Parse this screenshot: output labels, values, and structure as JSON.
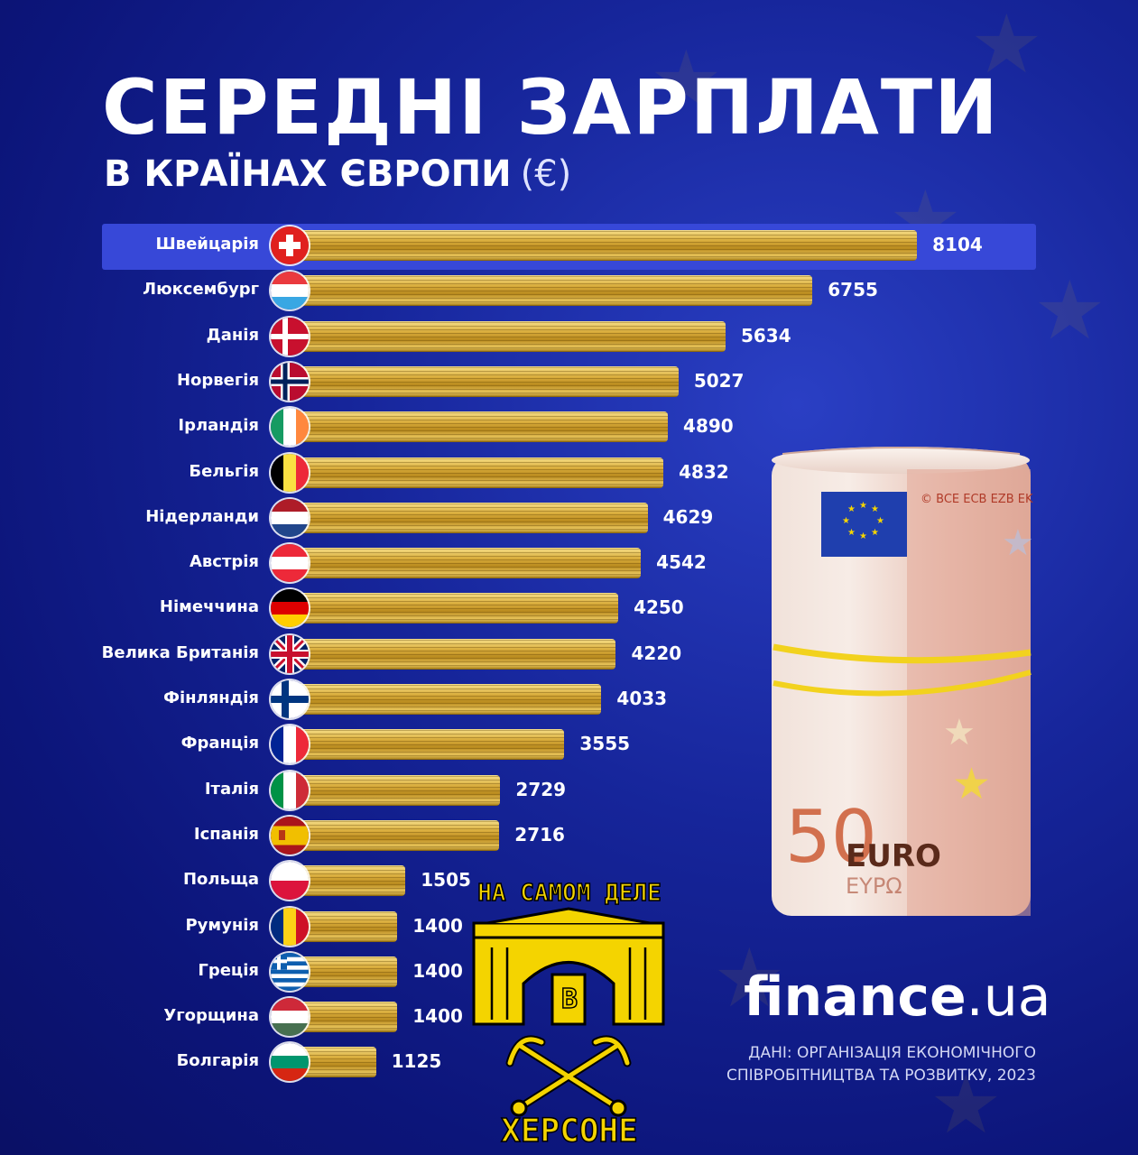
{
  "title": "СЕРЕДНІ ЗАРПЛАТИ",
  "subtitle": "В КРАЇНАХ ЄВРОПИ",
  "unit": "(€)",
  "brand": {
    "name": "finance",
    "domain": ".ua"
  },
  "source_line1": "ДАНІ: ОРГАНІЗАЦІЯ ЕКОНОМІЧНОГО",
  "source_line2": "СПІВРОБІТНИЦТВА ТА РОЗВИТКУ, 2023",
  "banknote": {
    "value": "50",
    "currency": "EURO",
    "currency_alt": "EYPΩ",
    "serial": "© BCE ECB EZB EK"
  },
  "stamp": {
    "top_text": "НА САМОМ ДЕЛЕ",
    "middle_letter": "В",
    "bottom_text": "ХЕРСОНЕ"
  },
  "colors": {
    "background": "#16259a",
    "highlight": "#3748d8",
    "bar_gold": "#d9ad3c",
    "stamp_yellow": "#f4d400"
  },
  "chart_data": {
    "type": "bar",
    "orientation": "horizontal",
    "title": "СЕРЕДНІ ЗАРПЛАТИ",
    "subtitle": "В КРАЇНАХ ЄВРОПИ (€)",
    "categories": [
      "Швейцарія",
      "Люксембург",
      "Данія",
      "Норвегія",
      "Ірландія",
      "Бельгія",
      "Нідерланди",
      "Австрія",
      "Німеччина",
      "Велика Британія",
      "Фінляндія",
      "Франція",
      "Італія",
      "Іспанія",
      "Польща",
      "Румунія",
      "Греція",
      "Угорщина",
      "Болгарія"
    ],
    "values": [
      8104,
      6755,
      5634,
      5027,
      4890,
      4832,
      4629,
      4542,
      4250,
      4220,
      4033,
      3555,
      2729,
      2716,
      1505,
      1400,
      1400,
      1400,
      1125
    ],
    "flags": [
      "ch",
      "lu",
      "dk",
      "no",
      "ie",
      "be",
      "nl",
      "at",
      "de",
      "gb",
      "fi",
      "fr",
      "it",
      "es",
      "pl",
      "ro",
      "gr",
      "hu",
      "bg"
    ],
    "highlighted": "Швейцарія",
    "grid": false,
    "legend": "none"
  }
}
